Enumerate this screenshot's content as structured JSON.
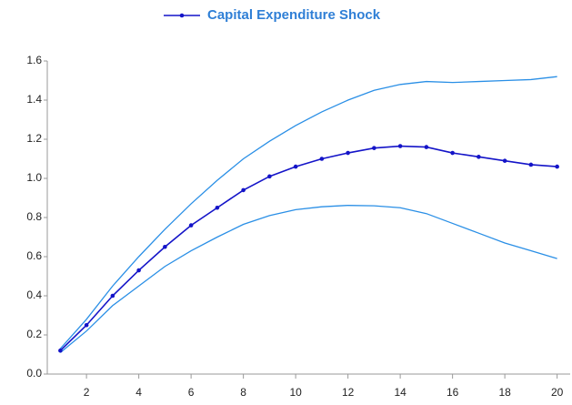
{
  "chart_data": {
    "type": "line",
    "x": [
      1,
      2,
      3,
      4,
      5,
      6,
      7,
      8,
      9,
      10,
      11,
      12,
      13,
      14,
      15,
      16,
      17,
      18,
      19,
      20
    ],
    "series": [
      {
        "name": "Capital Expenditure Shock",
        "color": "#1414c8",
        "markers": true,
        "values": [
          0.12,
          0.25,
          0.4,
          0.53,
          0.65,
          0.76,
          0.85,
          0.94,
          1.01,
          1.06,
          1.1,
          1.13,
          1.155,
          1.165,
          1.16,
          1.13,
          1.11,
          1.09,
          1.07,
          1.06
        ]
      }
    ],
    "bands": {
      "color": "#2a8fe6",
      "upper": [
        0.13,
        0.28,
        0.45,
        0.6,
        0.74,
        0.87,
        0.99,
        1.1,
        1.19,
        1.27,
        1.34,
        1.4,
        1.45,
        1.48,
        1.495,
        1.49,
        1.495,
        1.5,
        1.505,
        1.52
      ],
      "lower": [
        0.11,
        0.22,
        0.35,
        0.45,
        0.55,
        0.63,
        0.7,
        0.765,
        0.81,
        0.84,
        0.855,
        0.862,
        0.86,
        0.85,
        0.82,
        0.77,
        0.72,
        0.67,
        0.63,
        0.59
      ]
    },
    "xlim": [
      0.5,
      20.5
    ],
    "xticks": [
      2,
      4,
      6,
      8,
      10,
      12,
      14,
      16,
      18,
      20
    ],
    "ylim": [
      0,
      1.6
    ],
    "yticks": [
      {
        "value": 0,
        "label": "0.0"
      },
      0.2,
      0.4,
      0.6,
      0.8,
      {
        "value": 1,
        "label": "1.0"
      },
      1.2,
      1.4,
      1.6
    ],
    "legend": "top"
  }
}
